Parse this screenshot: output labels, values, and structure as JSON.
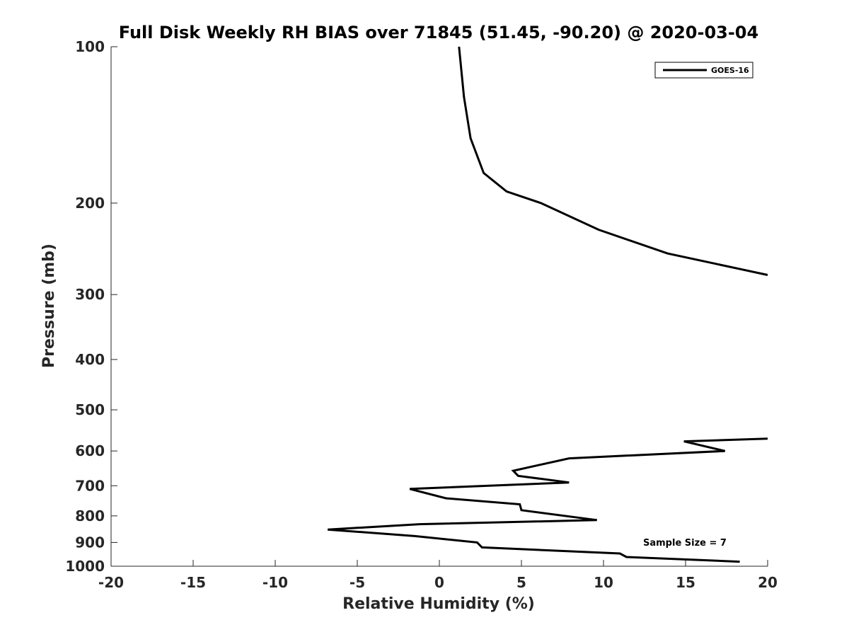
{
  "chart_data": {
    "type": "line",
    "title": "Full Disk Weekly RH BIAS over 71845 (51.45, -90.20) @ 2020-03-04",
    "xlabel": "Relative Humidity (%)",
    "ylabel": "Pressure (mb)",
    "xlim": [
      -20,
      20
    ],
    "ylim": [
      100,
      1000
    ],
    "y_scale": "log",
    "y_reversed": true,
    "grid": false,
    "legend_position": "top-right",
    "xticks": [
      "-20",
      "-15",
      "-10",
      "-5",
      "0",
      "5",
      "10",
      "15",
      "20"
    ],
    "yticks": [
      "100",
      "200",
      "300",
      "400",
      "500",
      "600",
      "700",
      "800",
      "900",
      "1000"
    ],
    "annotation": "Sample Size = 7",
    "series": [
      {
        "name": "GOES-16",
        "color": "#000000",
        "points": [
          {
            "x": 1.2,
            "y": 100
          },
          {
            "x": 1.5,
            "y": 125
          },
          {
            "x": 1.9,
            "y": 150
          },
          {
            "x": 2.7,
            "y": 175
          },
          {
            "x": 4.1,
            "y": 190
          },
          {
            "x": 6.2,
            "y": 200
          },
          {
            "x": 9.7,
            "y": 225
          },
          {
            "x": 13.9,
            "y": 250
          },
          {
            "x": 20.0,
            "y": 275
          }
        ]
      },
      {
        "name": "GOES-16",
        "color": "#000000",
        "points": [
          {
            "x": 20.0,
            "y": 568
          },
          {
            "x": 14.9,
            "y": 575
          },
          {
            "x": 17.4,
            "y": 600
          },
          {
            "x": 7.9,
            "y": 620
          },
          {
            "x": 4.5,
            "y": 655
          },
          {
            "x": 4.8,
            "y": 670
          },
          {
            "x": 7.9,
            "y": 690
          },
          {
            "x": -1.8,
            "y": 710
          },
          {
            "x": 0.4,
            "y": 740
          },
          {
            "x": 4.9,
            "y": 760
          },
          {
            "x": 5.0,
            "y": 780
          },
          {
            "x": 9.6,
            "y": 815
          },
          {
            "x": -1.2,
            "y": 830
          },
          {
            "x": -6.8,
            "y": 850
          },
          {
            "x": -1.5,
            "y": 875
          },
          {
            "x": 2.3,
            "y": 900
          },
          {
            "x": 2.6,
            "y": 920
          },
          {
            "x": 11.0,
            "y": 945
          },
          {
            "x": 11.4,
            "y": 960
          },
          {
            "x": 18.3,
            "y": 980
          }
        ]
      }
    ]
  }
}
